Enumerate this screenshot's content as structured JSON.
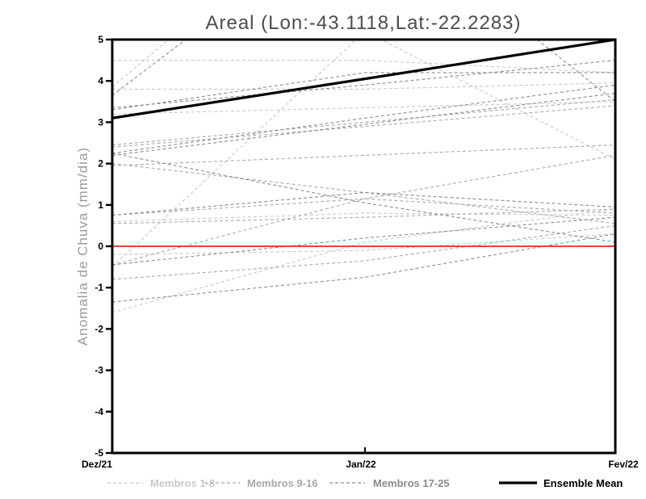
{
  "title": "Areal (Lon:-43.1118,Lat:-22.2283)",
  "y_axis": {
    "label": "Anomalia de Chuva (mm/dia)",
    "ticks": [
      "5",
      "4",
      "3",
      "2",
      "1",
      "0",
      "-1",
      "-2",
      "-3",
      "-4",
      "-5"
    ],
    "min": -5,
    "max": 5
  },
  "x_axis": {
    "ticks": [
      "Dez/21",
      "Jan/22",
      "Fev/22"
    ]
  },
  "legend": {
    "items": [
      {
        "label": "Membros 1-8",
        "color": "#c9c9c9",
        "style": "dashed"
      },
      {
        "label": "Membros 9-16",
        "color": "#a9a9a9",
        "style": "dashed"
      },
      {
        "label": "Membros 17-25",
        "color": "#8c8c8c",
        "style": "dashed"
      },
      {
        "label": "Ensemble Mean",
        "color": "#000000",
        "style": "solid"
      }
    ]
  },
  "colors": {
    "background": "#ffffff",
    "frame": "#000000",
    "zero_line": "#ee4237",
    "title": "#4d4d4d",
    "axis_label": "#9b9b9b",
    "tick_label": "#000000"
  },
  "chart_data": {
    "type": "line",
    "title": "Areal (Lon:-43.1118,Lat:-22.2283)",
    "xlabel": "",
    "ylabel": "Anomalia de Chuva (mm/dia)",
    "x": [
      "Dez/21",
      "Jan/22",
      "Fev/22"
    ],
    "ylim": [
      -5,
      5
    ],
    "grid": false,
    "legend_position": "bottom",
    "zero_line": {
      "y": 0,
      "color": "#ee4237",
      "width": 2
    },
    "series": [
      {
        "name": "Membros 1-8",
        "color": "#c9c9c9",
        "style": "dashed",
        "members": [
          [
            4.5,
            4.5,
            4.2
          ],
          [
            3.8,
            3.8,
            3.95
          ],
          [
            3.2,
            3.35,
            3.5
          ],
          [
            3.85,
            9.0,
            6.0
          ],
          [
            -0.5,
            5.2,
            2.1
          ],
          [
            0.6,
            0.8,
            0.75
          ],
          [
            -0.2,
            -0.1,
            0.3
          ],
          [
            -1.6,
            0.1,
            0.9
          ]
        ]
      },
      {
        "name": "Membros 9-16",
        "color": "#a9a9a9",
        "style": "dashed",
        "members": [
          [
            2.45,
            3.0,
            3.55
          ],
          [
            2.4,
            2.9,
            3.4
          ],
          [
            2.0,
            1.3,
            0.55
          ],
          [
            1.95,
            2.2,
            2.45
          ],
          [
            0.75,
            1.15,
            0.8
          ],
          [
            0.55,
            0.7,
            0.9
          ],
          [
            -0.45,
            1.15,
            2.2
          ],
          [
            -0.8,
            -0.35,
            0.5
          ]
        ]
      },
      {
        "name": "Membros 17-25",
        "color": "#8c8c8c",
        "style": "dashed",
        "members": [
          [
            3.65,
            8.3,
            3.5
          ],
          [
            3.3,
            4.2,
            4.2
          ],
          [
            3.35,
            3.9,
            4.5
          ],
          [
            2.25,
            3.1,
            3.9
          ],
          [
            2.2,
            2.95,
            3.7
          ],
          [
            2.25,
            1.05,
            0.1
          ],
          [
            0.75,
            1.3,
            0.95
          ],
          [
            -0.45,
            0.2,
            0.7
          ],
          [
            -1.35,
            -0.75,
            0.3
          ]
        ]
      },
      {
        "name": "Ensemble Mean",
        "color": "#000000",
        "style": "solid",
        "width": 3.2,
        "values": [
          3.1,
          4.05,
          5.0
        ]
      }
    ]
  }
}
